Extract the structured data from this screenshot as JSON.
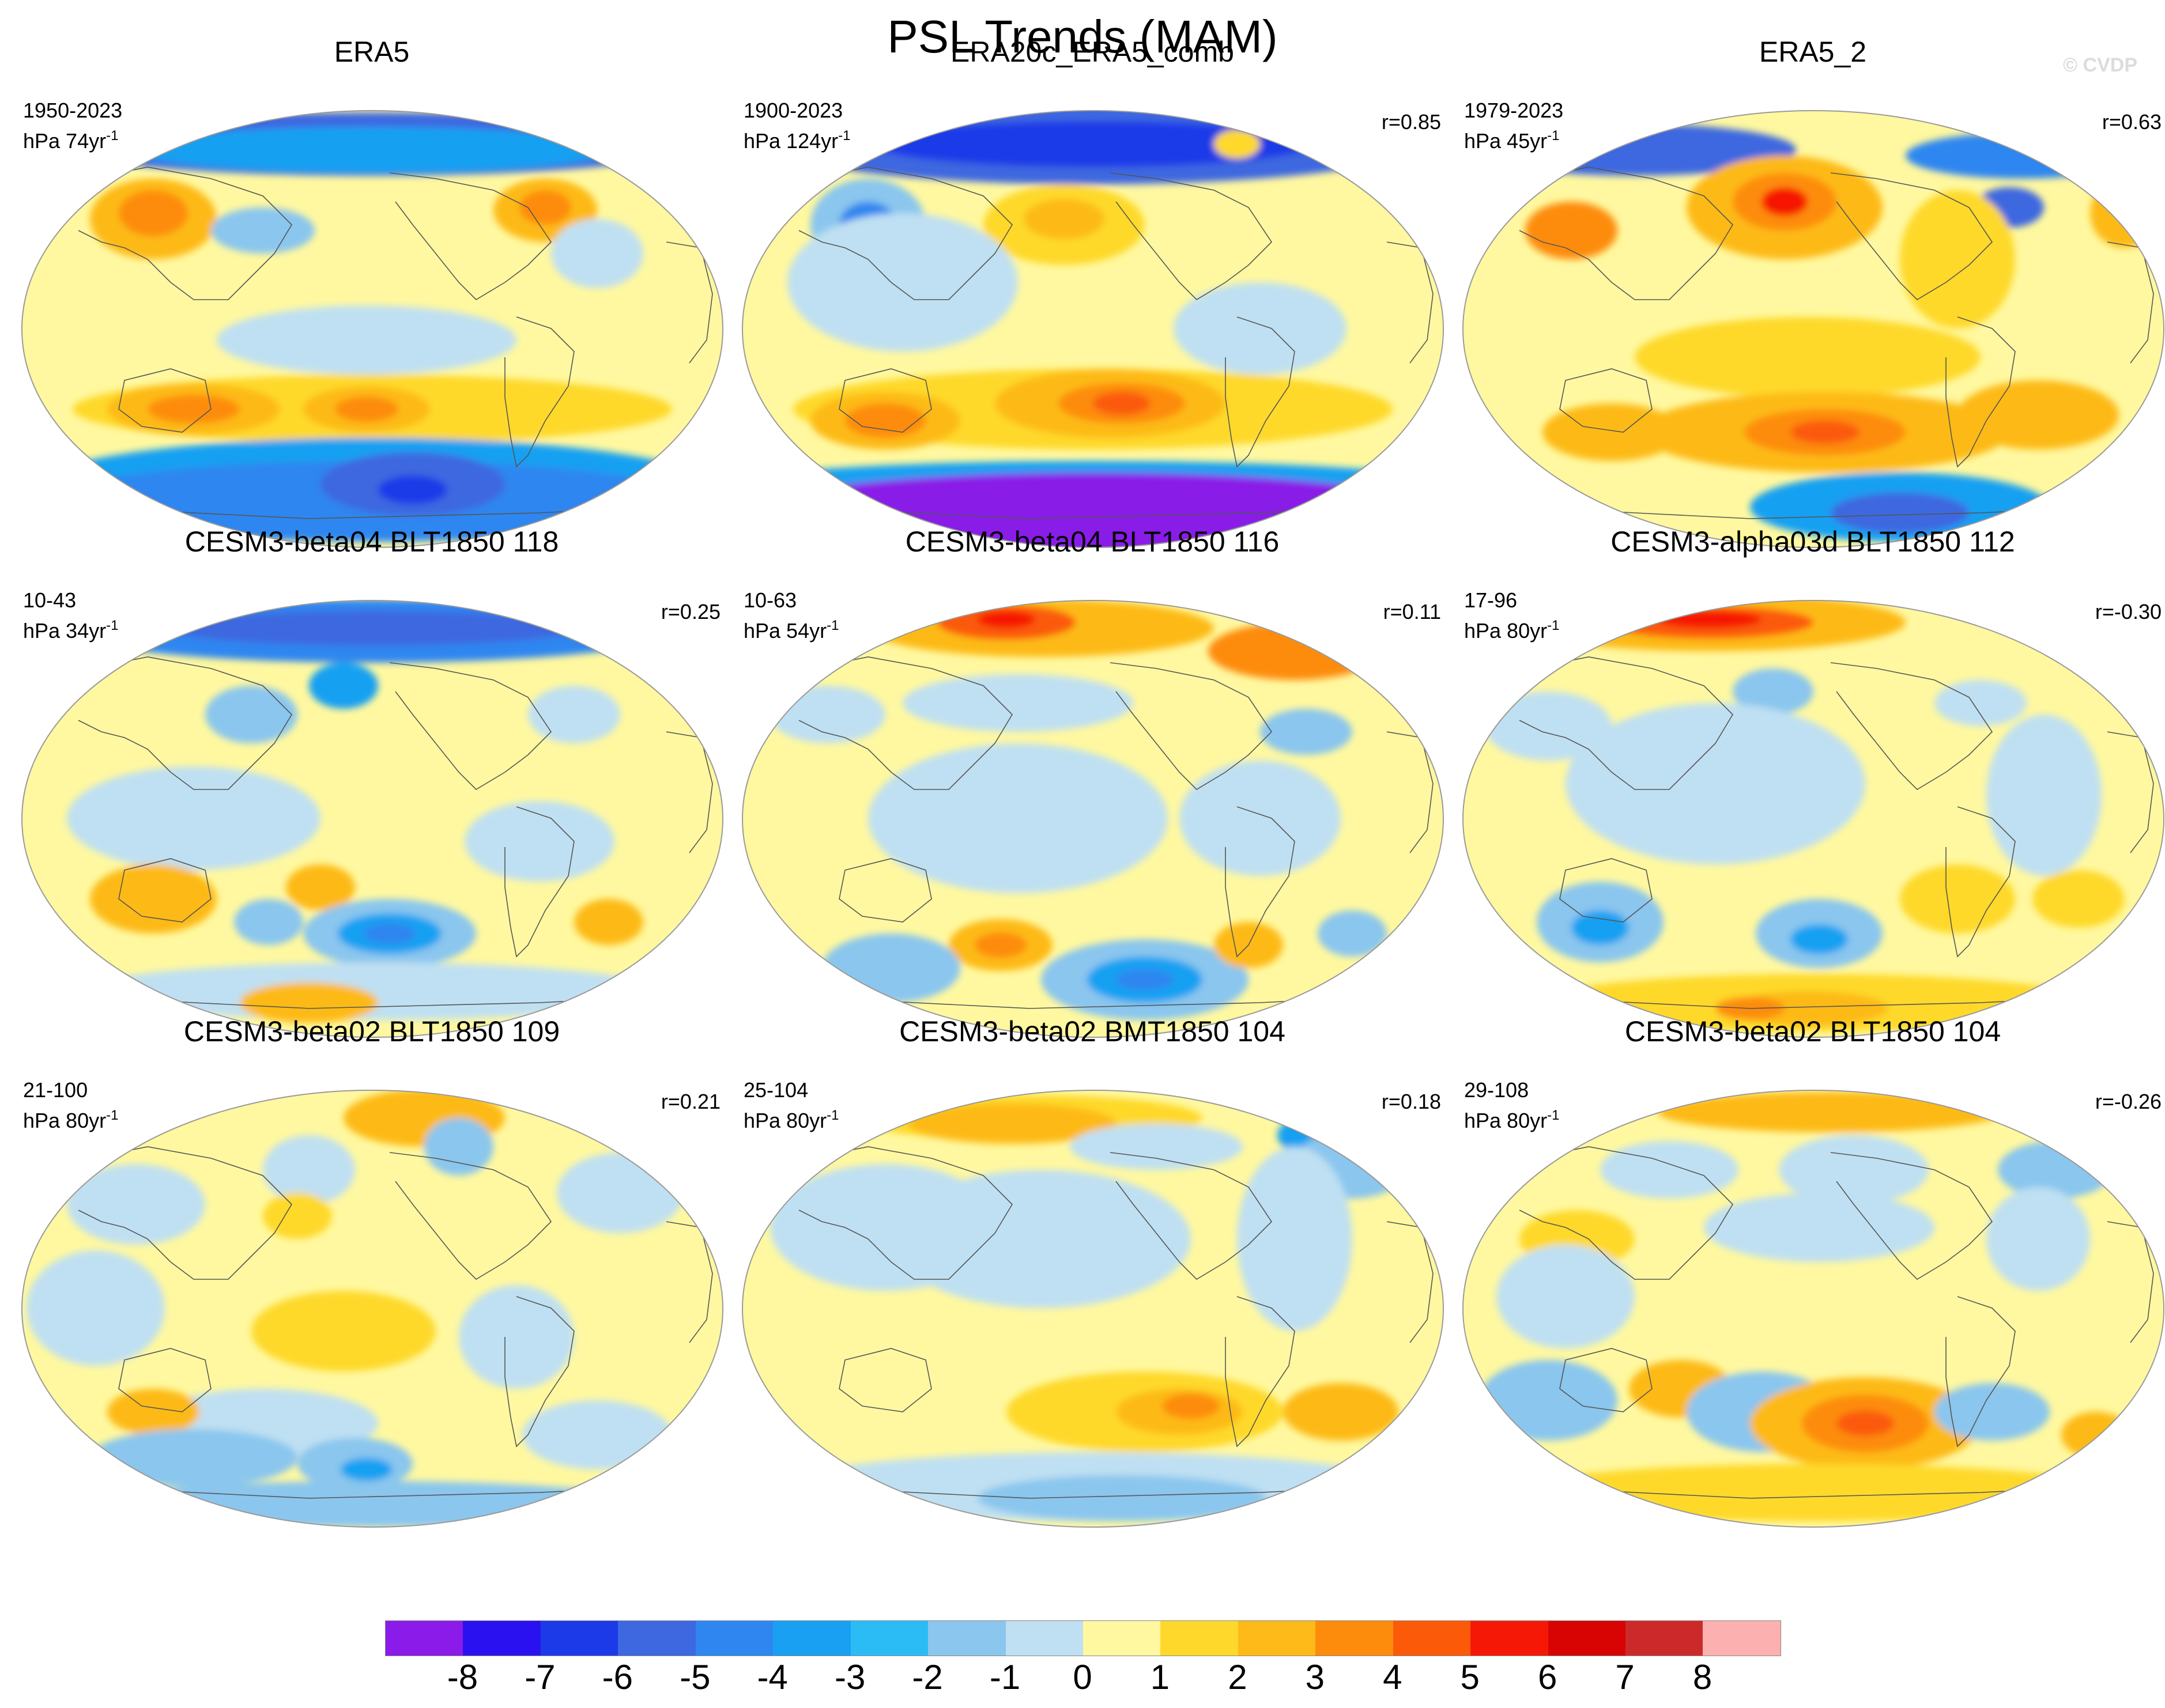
{
  "title": "PSL Trends (MAM)",
  "copyright": "© CVDP",
  "panels": [
    {
      "title": "ERA5",
      "period": "1950-2023",
      "units": "hPa 74yr",
      "units_sup": "-1",
      "r": "",
      "pattern": "era5_long"
    },
    {
      "title": "ERA20c_ERA5_comb",
      "period": "1900-2023",
      "units": "hPa 124yr",
      "units_sup": "-1",
      "r": "r=0.85",
      "pattern": "era20c"
    },
    {
      "title": "ERA5_2",
      "period": "1979-2023",
      "units": "hPa 45yr",
      "units_sup": "-1",
      "r": "r=0.63",
      "pattern": "era5_short"
    },
    {
      "title": "CESM3-beta04 BLT1850 118",
      "period": "10-43",
      "units": "hPa 34yr",
      "units_sup": "-1",
      "r": "r=0.25",
      "pattern": "m1"
    },
    {
      "title": "CESM3-beta04 BLT1850 116",
      "period": "10-63",
      "units": "hPa 54yr",
      "units_sup": "-1",
      "r": "r=0.11",
      "pattern": "m2"
    },
    {
      "title": "CESM3-alpha03d BLT1850 112",
      "period": "17-96",
      "units": "hPa 80yr",
      "units_sup": "-1",
      "r": "r=-0.30",
      "pattern": "m3"
    },
    {
      "title": "CESM3-beta02 BLT1850 109",
      "period": "21-100",
      "units": "hPa 80yr",
      "units_sup": "-1",
      "r": "r=0.21",
      "pattern": "m4"
    },
    {
      "title": "CESM3-beta02 BMT1850 104",
      "period": "25-104",
      "units": "hPa 80yr",
      "units_sup": "-1",
      "r": "r=0.18",
      "pattern": "m5"
    },
    {
      "title": "CESM3-beta02 BLT1850 104",
      "period": "29-108",
      "units": "hPa 80yr",
      "units_sup": "-1",
      "r": "r=-0.26",
      "pattern": "m6"
    }
  ],
  "colorbar": {
    "colors": [
      "#8a1be8",
      "#2a12f0",
      "#1d3ae8",
      "#3d68e0",
      "#2f86f0",
      "#19a0f2",
      "#2bbcf6",
      "#8ac6ee",
      "#bfe0f2",
      "#fff8a0",
      "#fed92c",
      "#fdba18",
      "#fd8c0c",
      "#fb5a08",
      "#f61806",
      "#d80404",
      "#cc2a2a",
      "#fcb0b0"
    ],
    "ticks": [
      "-8",
      "-7",
      "-6",
      "-5",
      "-4",
      "-3",
      "-2",
      "-1",
      "0",
      "1",
      "2",
      "3",
      "4",
      "5",
      "6",
      "7",
      "8"
    ]
  }
}
